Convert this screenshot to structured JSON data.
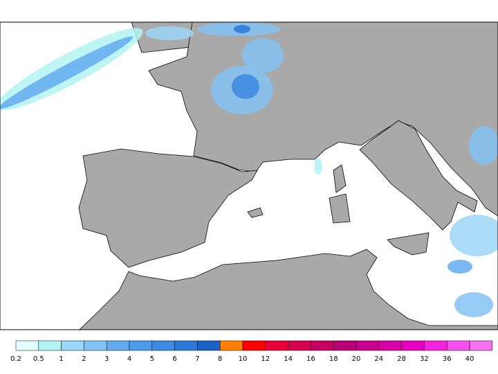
{
  "colorbar": {
    "ticks": [
      0.2,
      0.5,
      1,
      2,
      3,
      4,
      5,
      6,
      7,
      8,
      10,
      12,
      14,
      16,
      18,
      20,
      24,
      28,
      32,
      36,
      40
    ],
    "colors": [
      "#e0fffe",
      "#b2f2f2",
      "#9cd6f6",
      "#82c2f2",
      "#64aaee",
      "#4c9aea",
      "#3c8ae2",
      "#2c7ad8",
      "#1c62c2",
      "#ff7f00",
      "#ff0000",
      "#e6003a",
      "#d60050",
      "#c80062",
      "#b80074",
      "#c8008e",
      "#d800a6",
      "#e800c2",
      "#f424de",
      "#f650f0",
      "#f672f2"
    ]
  }
}
